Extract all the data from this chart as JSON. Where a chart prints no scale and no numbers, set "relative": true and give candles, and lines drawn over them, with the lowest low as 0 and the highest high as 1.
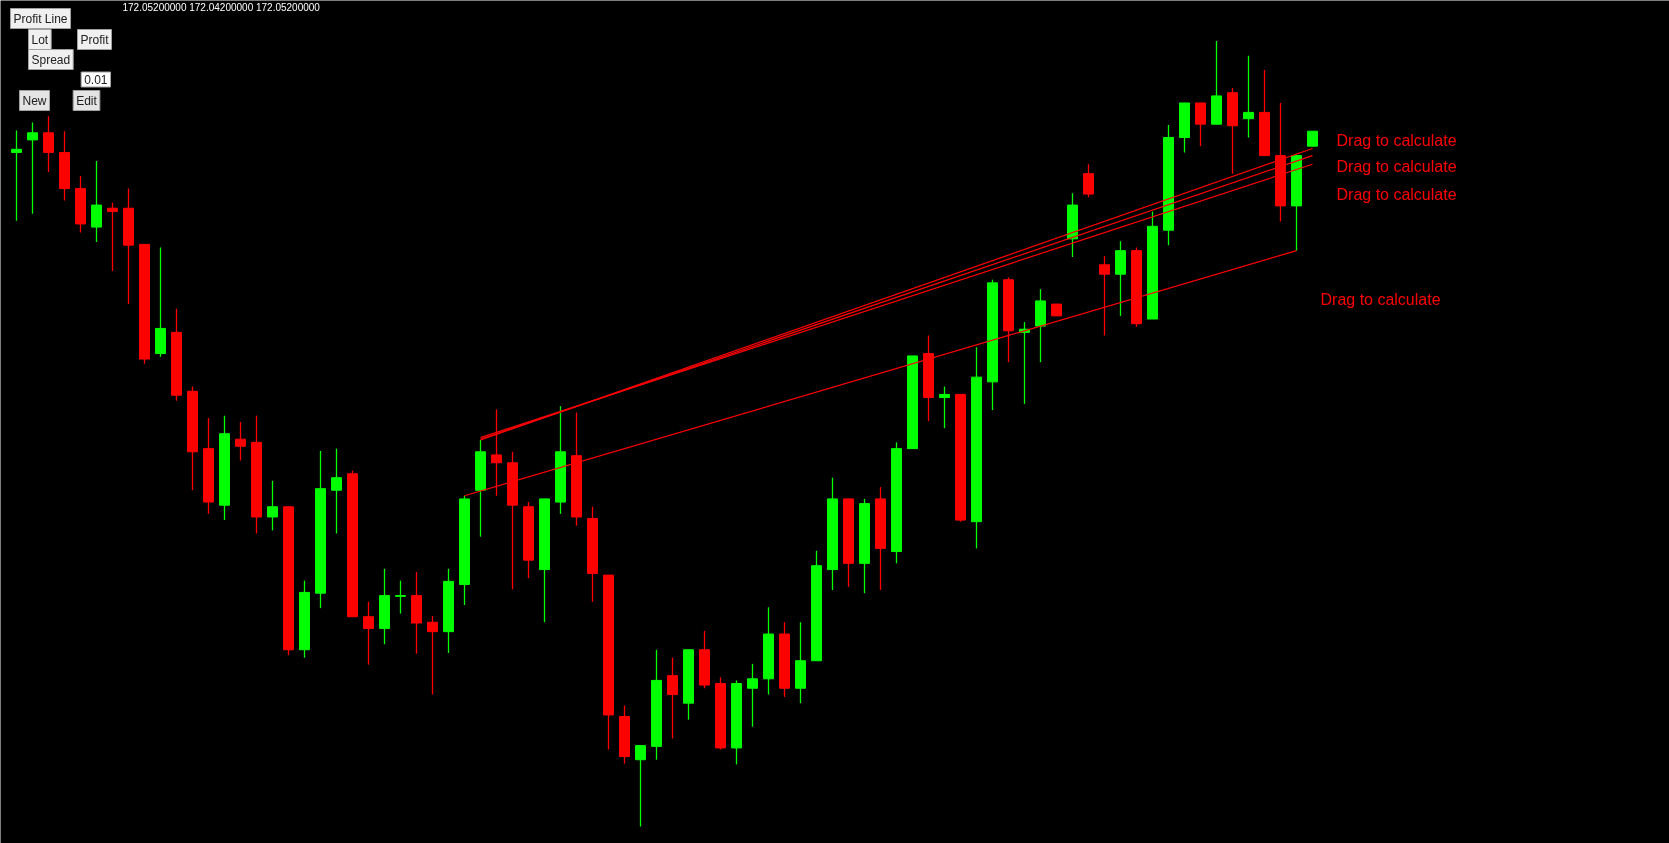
{
  "chart_data": {
    "type": "candlestick",
    "relative": true,
    "categories": [
      null,
      null,
      null,
      null,
      null,
      null,
      null,
      null,
      null,
      null,
      null,
      null,
      null,
      null,
      null,
      null,
      null,
      null,
      null,
      null,
      null,
      null,
      null,
      null,
      null,
      null,
      null,
      null,
      null,
      null,
      null,
      null,
      null,
      null,
      null,
      null,
      null,
      null,
      null,
      null,
      null,
      null,
      null,
      null,
      null,
      null,
      null,
      null,
      null,
      null,
      null,
      null,
      null,
      null,
      null,
      null,
      null,
      null,
      null,
      null,
      null,
      null,
      null,
      null,
      null,
      null,
      null,
      null,
      null,
      null,
      null,
      null,
      null,
      null,
      null,
      null,
      null,
      null,
      null,
      null,
      null,
      null
    ],
    "ohlc": [
      [
        0.858,
        0.886,
        0.771,
        0.862
      ],
      [
        0.874,
        0.896,
        0.78,
        0.883
      ],
      [
        0.883,
        0.904,
        0.833,
        0.858
      ],
      [
        0.858,
        0.885,
        0.797,
        0.812
      ],
      [
        0.812,
        0.828,
        0.756,
        0.767
      ],
      [
        0.763,
        0.847,
        0.744,
        0.791
      ],
      [
        0.787,
        0.794,
        0.707,
        0.783
      ],
      [
        0.787,
        0.812,
        0.665,
        0.74
      ],
      [
        0.741,
        0.741,
        0.589,
        0.595
      ],
      [
        0.602,
        0.737,
        0.598,
        0.634
      ],
      [
        0.629,
        0.659,
        0.542,
        0.549
      ],
      [
        0.554,
        0.56,
        0.428,
        0.477
      ],
      [
        0.481,
        0.52,
        0.398,
        0.413
      ],
      [
        0.409,
        0.523,
        0.39,
        0.5
      ],
      [
        0.493,
        0.515,
        0.466,
        0.484
      ],
      [
        0.489,
        0.523,
        0.373,
        0.394
      ],
      [
        0.394,
        0.44,
        0.377,
        0.407
      ],
      [
        0.407,
        0.407,
        0.218,
        0.225
      ],
      [
        0.225,
        0.313,
        0.215,
        0.298
      ],
      [
        0.297,
        0.478,
        0.278,
        0.43
      ],
      [
        0.428,
        0.481,
        0.373,
        0.444
      ],
      [
        0.449,
        0.453,
        0.267,
        0.267
      ],
      [
        0.267,
        0.286,
        0.206,
        0.252
      ],
      [
        0.252,
        0.328,
        0.232,
        0.294
      ],
      [
        0.293,
        0.313,
        0.271,
        0.294
      ],
      [
        0.294,
        0.324,
        0.22,
        0.259
      ],
      [
        0.26,
        0.268,
        0.168,
        0.248
      ],
      [
        0.248,
        0.328,
        0.221,
        0.312
      ],
      [
        0.308,
        0.421,
        0.282,
        0.417
      ],
      [
        0.428,
        0.492,
        0.369,
        0.477
      ],
      [
        0.473,
        0.531,
        0.421,
        0.463
      ],
      [
        0.463,
        0.477,
        0.302,
        0.409
      ],
      [
        0.407,
        0.413,
        0.316,
        0.339
      ],
      [
        0.327,
        0.417,
        0.26,
        0.417
      ],
      [
        0.413,
        0.535,
        0.398,
        0.477
      ],
      [
        0.472,
        0.527,
        0.383,
        0.394
      ],
      [
        0.392,
        0.407,
        0.286,
        0.322
      ],
      [
        0.32,
        0.32,
        0.098,
        0.142
      ],
      [
        0.14,
        0.154,
        0.08,
        0.089
      ],
      [
        0.085,
        0.103,
        0,
        0.103
      ],
      [
        0.102,
        0.225,
        0.085,
        0.186
      ],
      [
        0.192,
        0.215,
        0.112,
        0.168
      ],
      [
        0.157,
        0.225,
        0.136,
        0.225
      ],
      [
        0.225,
        0.249,
        0.176,
        0.18
      ],
      [
        0.182,
        0.19,
        0.098,
        0.1
      ],
      [
        0.1,
        0.186,
        0.079,
        0.182
      ],
      [
        0.176,
        0.207,
        0.127,
        0.188
      ],
      [
        0.188,
        0.279,
        0.168,
        0.245
      ],
      [
        0.245,
        0.26,
        0.165,
        0.176
      ],
      [
        0.176,
        0.26,
        0.157,
        0.211
      ],
      [
        0.211,
        0.351,
        0.211,
        0.332
      ],
      [
        0.327,
        0.444,
        0.301,
        0.417
      ],
      [
        0.417,
        0.417,
        0.305,
        0.335
      ],
      [
        0.335,
        0.417,
        0.297,
        0.411
      ],
      [
        0.417,
        0.432,
        0.301,
        0.354
      ],
      [
        0.35,
        0.489,
        0.335,
        0.481
      ],
      [
        0.481,
        0.599,
        0.481,
        0.599
      ],
      [
        0.602,
        0.625,
        0.516,
        0.546
      ],
      [
        0.546,
        0.56,
        0.507,
        0.55
      ],
      [
        0.55,
        0.55,
        0.388,
        0.39
      ],
      [
        0.388,
        0.61,
        0.354,
        0.572
      ],
      [
        0.566,
        0.696,
        0.53,
        0.692
      ],
      [
        0.696,
        0.699,
        0.591,
        0.631
      ],
      [
        0.629,
        0.642,
        0.538,
        0.633
      ],
      [
        0.637,
        0.684,
        0.591,
        0.669
      ],
      [
        0.665,
        0.665,
        0.65,
        0.65
      ],
      [
        0.748,
        0.806,
        0.725,
        0.791
      ],
      [
        0.831,
        0.843,
        0.801,
        0.805
      ],
      [
        0.715,
        0.726,
        0.625,
        0.703
      ],
      [
        0.703,
        0.745,
        0.65,
        0.733
      ],
      [
        0.733,
        0.737,
        0.636,
        0.64
      ],
      [
        0.646,
        0.783,
        0.646,
        0.764
      ],
      [
        0.759,
        0.893,
        0.74,
        0.877
      ],
      [
        0.877,
        0.921,
        0.858,
        0.921
      ],
      [
        0.921,
        0.921,
        0.866,
        0.894
      ],
      [
        0.894,
        1.0,
        0.894,
        0.93
      ],
      [
        0.934,
        0.94,
        0.831,
        0.892
      ],
      [
        0.901,
        0.981,
        0.877,
        0.909
      ],
      [
        0.909,
        0.963,
        0.854,
        0.854
      ],
      [
        0.854,
        0.921,
        0.77,
        0.79
      ],
      [
        0.79,
        0.854,
        0.733,
        0.854
      ],
      [
        0.866,
        0.885,
        0.866,
        0.885
      ]
    ],
    "colors": [
      "#00ff00",
      "#00ff00",
      "#ff0000",
      "#ff0000",
      "#ff0000",
      "#00ff00",
      "#ff0000",
      "#ff0000",
      "#ff0000",
      "#00ff00",
      "#ff0000",
      "#ff0000",
      "#ff0000",
      "#00ff00",
      "#ff0000",
      "#ff0000",
      "#00ff00",
      "#ff0000",
      "#00ff00",
      "#00ff00",
      "#00ff00",
      "#ff0000",
      "#ff0000",
      "#00ff00",
      "#00ff00",
      "#ff0000",
      "#ff0000",
      "#00ff00",
      "#00ff00",
      "#00ff00",
      "#ff0000",
      "#ff0000",
      "#ff0000",
      "#00ff00",
      "#00ff00",
      "#ff0000",
      "#ff0000",
      "#ff0000",
      "#ff0000",
      "#00ff00",
      "#00ff00",
      "#ff0000",
      "#00ff00",
      "#ff0000",
      "#ff0000",
      "#00ff00",
      "#00ff00",
      "#00ff00",
      "#ff0000",
      "#00ff00",
      "#00ff00",
      "#00ff00",
      "#ff0000",
      "#00ff00",
      "#ff0000",
      "#00ff00",
      "#00ff00",
      "#ff0000",
      "#00ff00",
      "#ff0000",
      "#00ff00",
      "#00ff00",
      "#ff0000",
      "#00ff00",
      "#00ff00",
      "#ff0000",
      "#00ff00",
      "#ff0000",
      "#ff0000",
      "#00ff00",
      "#ff0000",
      "#00ff00",
      "#00ff00",
      "#00ff00",
      "#ff0000",
      "#00ff00",
      "#ff0000",
      "#00ff00",
      "#ff0000",
      "#ff0000",
      "#00ff00",
      "#00ff00"
    ],
    "series": [
      {
        "type": "line",
        "name": "Drag to calculate",
        "color": "#ff0000",
        "values": [
          null,
          null,
          null,
          null,
          null,
          null,
          null,
          null,
          null,
          null,
          null,
          null,
          null,
          null,
          null,
          null,
          null,
          null,
          null,
          null,
          null,
          null,
          null,
          null,
          null,
          null,
          null,
          null,
          null,
          0.492,
          null,
          null,
          null,
          null,
          null,
          null,
          null,
          null,
          null,
          null,
          null,
          null,
          null,
          null,
          null,
          null,
          null,
          null,
          null,
          null,
          null,
          null,
          null,
          null,
          null,
          null,
          null,
          null,
          null,
          null,
          null,
          null,
          null,
          null,
          null,
          null,
          null,
          null,
          null,
          null,
          null,
          null,
          null,
          null,
          null,
          null,
          null,
          null,
          null,
          null,
          null,
          0.863
        ]
      },
      {
        "type": "line",
        "name": "Drag to calculate",
        "color": "#ff0000",
        "values": [
          null,
          null,
          null,
          null,
          null,
          null,
          null,
          null,
          null,
          null,
          null,
          null,
          null,
          null,
          null,
          null,
          null,
          null,
          null,
          null,
          null,
          null,
          null,
          null,
          null,
          null,
          null,
          null,
          null,
          0.493,
          null,
          null,
          null,
          null,
          null,
          null,
          null,
          null,
          null,
          null,
          null,
          null,
          null,
          null,
          null,
          null,
          null,
          null,
          null,
          null,
          null,
          null,
          null,
          null,
          null,
          null,
          null,
          null,
          null,
          null,
          null,
          null,
          null,
          null,
          null,
          null,
          null,
          null,
          null,
          null,
          null,
          null,
          null,
          null,
          null,
          null,
          null,
          null,
          null,
          null,
          null,
          0.854
        ]
      },
      {
        "type": "line",
        "name": "Drag to calculate",
        "color": "#ff0000",
        "values": [
          null,
          null,
          null,
          null,
          null,
          null,
          null,
          null,
          null,
          null,
          null,
          null,
          null,
          null,
          null,
          null,
          null,
          null,
          null,
          null,
          null,
          null,
          null,
          null,
          null,
          null,
          null,
          null,
          null,
          0.495,
          null,
          null,
          null,
          null,
          null,
          null,
          null,
          null,
          null,
          null,
          null,
          null,
          null,
          null,
          null,
          null,
          null,
          null,
          null,
          null,
          null,
          null,
          null,
          null,
          null,
          null,
          null,
          null,
          null,
          null,
          null,
          null,
          null,
          null,
          null,
          null,
          null,
          null,
          null,
          null,
          null,
          null,
          null,
          null,
          null,
          null,
          null,
          null,
          null,
          null,
          null,
          0.843
        ]
      },
      {
        "type": "line",
        "name": "Drag to calculate",
        "color": "#ff0000",
        "values": [
          null,
          null,
          null,
          null,
          null,
          null,
          null,
          null,
          null,
          null,
          null,
          null,
          null,
          null,
          null,
          null,
          null,
          null,
          null,
          null,
          null,
          null,
          null,
          null,
          null,
          null,
          null,
          null,
          0.421,
          null,
          null,
          null,
          null,
          null,
          null,
          null,
          null,
          null,
          null,
          null,
          null,
          null,
          null,
          null,
          null,
          null,
          null,
          null,
          null,
          null,
          null,
          null,
          null,
          null,
          null,
          null,
          null,
          null,
          null,
          null,
          null,
          null,
          null,
          null,
          null,
          null,
          null,
          null,
          null,
          null,
          null,
          null,
          null,
          null,
          null,
          null,
          null,
          null,
          null,
          null,
          0.733,
          null
        ]
      }
    ],
    "annotations": [
      "172.05200000 172.04200000 172.05200000",
      "Profit Line",
      "Lot",
      "Profit",
      "Spread",
      "0.01",
      "New",
      "Edit"
    ]
  }
}
